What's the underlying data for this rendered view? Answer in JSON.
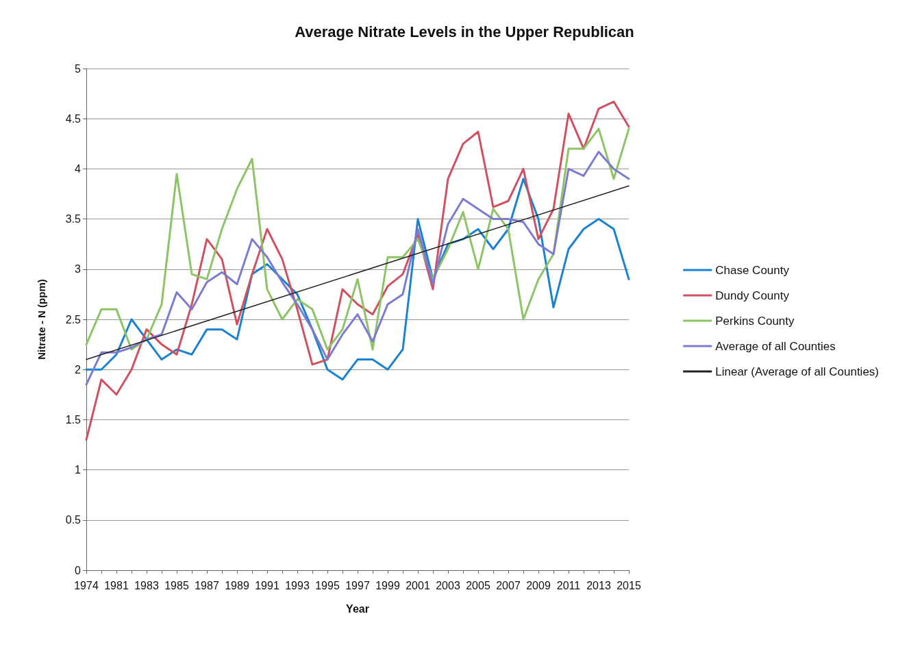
{
  "chart_data": {
    "type": "line",
    "title": "Average Nitrate Levels in the Upper Republican",
    "xlabel": "Year",
    "ylabel": "Nitrate - N (ppm)",
    "categories": [
      "1974",
      null,
      "1981",
      null,
      "1983",
      null,
      "1985",
      null,
      "1987",
      null,
      "1989",
      null,
      "1991",
      null,
      "1993",
      null,
      "1995",
      null,
      "1997",
      null,
      "1999",
      null,
      "2001",
      null,
      "2003",
      null,
      "2005",
      null,
      "2007",
      null,
      "2009",
      null,
      "2011",
      null,
      "2013",
      null,
      "2015"
    ],
    "series": [
      {
        "name": "Chase County",
        "color": "#1a82d2",
        "values": [
          2.0,
          2.0,
          2.15,
          2.5,
          2.3,
          2.1,
          2.2,
          2.15,
          2.4,
          2.4,
          2.3,
          2.95,
          3.05,
          2.9,
          2.75,
          2.4,
          2.0,
          1.9,
          2.1,
          2.1,
          2.0,
          2.2,
          3.5,
          2.9,
          3.25,
          3.3,
          3.4,
          3.2,
          3.4,
          3.9,
          3.5,
          2.62,
          3.2,
          3.4,
          3.5,
          3.4,
          2.9
        ]
      },
      {
        "name": "Dundy County",
        "color": "#d0505f",
        "values": [
          1.3,
          1.9,
          1.75,
          2.0,
          2.4,
          2.25,
          2.15,
          2.65,
          3.3,
          3.1,
          2.45,
          2.95,
          3.4,
          3.1,
          2.6,
          2.05,
          2.1,
          2.8,
          2.65,
          2.55,
          2.83,
          2.95,
          3.35,
          2.8,
          3.9,
          4.25,
          4.37,
          3.62,
          3.68,
          4.0,
          3.3,
          3.6,
          4.55,
          4.2,
          4.6,
          4.67,
          4.42
        ]
      },
      {
        "name": "Perkins County",
        "color": "#8cc466",
        "values": [
          2.25,
          2.6,
          2.6,
          2.2,
          2.3,
          2.65,
          3.95,
          2.95,
          2.9,
          3.4,
          3.8,
          4.1,
          2.8,
          2.5,
          2.7,
          2.6,
          2.2,
          2.4,
          2.9,
          2.2,
          3.12,
          3.12,
          3.3,
          2.9,
          3.2,
          3.57,
          3.0,
          3.6,
          3.4,
          2.5,
          2.9,
          3.15,
          4.2,
          4.2,
          4.4,
          3.9,
          4.4
        ]
      },
      {
        "name": "Average of all Counties",
        "color": "#7b7bd2",
        "values": [
          1.85,
          2.17,
          2.17,
          2.22,
          2.3,
          2.35,
          2.77,
          2.6,
          2.87,
          2.97,
          2.85,
          3.3,
          3.12,
          2.87,
          2.65,
          2.4,
          2.1,
          2.35,
          2.55,
          2.28,
          2.65,
          2.75,
          3.4,
          2.85,
          3.45,
          3.7,
          3.6,
          3.5,
          3.5,
          3.47,
          3.25,
          3.15,
          4.0,
          3.93,
          4.17,
          4.0,
          3.9
        ]
      },
      {
        "name": "Linear (Average of all Counties)",
        "color": "#222222",
        "values": [
          2.1,
          null,
          null,
          null,
          null,
          null,
          null,
          null,
          null,
          null,
          null,
          null,
          null,
          null,
          null,
          null,
          null,
          null,
          null,
          null,
          null,
          null,
          null,
          null,
          null,
          null,
          null,
          null,
          null,
          null,
          null,
          null,
          null,
          null,
          null,
          null,
          3.83
        ]
      }
    ],
    "ylim": [
      0,
      5
    ],
    "yticks": [
      0,
      0.5,
      1,
      1.5,
      2,
      2.5,
      3,
      3.5,
      4,
      4.5,
      5
    ],
    "grid": "y",
    "legend": "right",
    "marker": "none",
    "line_style": "solid"
  }
}
